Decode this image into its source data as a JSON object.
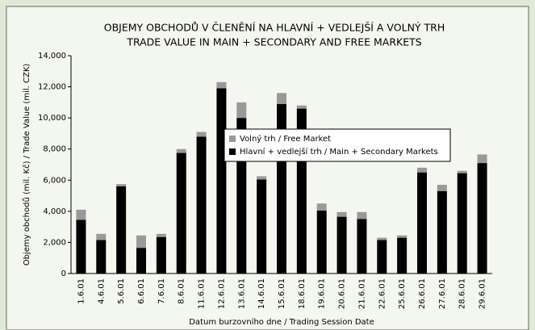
{
  "chart_data": {
    "type": "stacked_bar",
    "title": "OBJEMY OBCHODŮ V ČLENĚNÍ NA HLAVNÍ + VEDLEJŠÍ A VOLNÝ TRH",
    "subtitle": "TRADE VALUE IN MAIN + SECONDARY AND FREE MARKETS",
    "x_label": "Datum burzovního dne /  Trading Session Date",
    "y_label": "Objemy obchodů (mil. Kč) / Trade Value (mil. CZK)",
    "categories": [
      "1.6.01",
      "4.6.01",
      "5.6.01",
      "6.6.01",
      "7.6.01",
      "8.6.01",
      "11.6.01",
      "12.6.01",
      "13.6.01",
      "14.6.01",
      "15.6.01",
      "18.6.01",
      "19.6.01",
      "20.6.01",
      "21.6.01",
      "22.6.01",
      "25.6.01",
      "26.6.01",
      "27.6.01",
      "28.6.01",
      "29.6.01"
    ],
    "series": [
      {
        "name": "Hlavní + vedlejší trh / Main + Secondary Markets",
        "color": "#000000",
        "values": [
          3450,
          2150,
          5600,
          1650,
          2350,
          7750,
          8800,
          11900,
          10000,
          6050,
          10900,
          10600,
          4050,
          3650,
          3500,
          2150,
          2300,
          6500,
          5300,
          6450,
          7100
        ]
      },
      {
        "name": "Volný trh / Free Market",
        "color": "#999999",
        "values": [
          650,
          400,
          150,
          800,
          200,
          250,
          300,
          400,
          1000,
          200,
          700,
          200,
          450,
          300,
          450,
          150,
          150,
          300,
          400,
          150,
          550
        ]
      }
    ],
    "ylim": [
      0,
      14000
    ],
    "yticks": [
      0,
      {
        "value": 2000,
        "label": "2,000"
      },
      {
        "value": 4000,
        "label": "4,000"
      },
      {
        "value": 6000,
        "label": "6,000"
      },
      {
        "value": 8000,
        "label": "8,000"
      },
      {
        "value": 10000,
        "label": "10,000"
      },
      {
        "value": 12000,
        "label": "12,000"
      },
      {
        "value": 14000,
        "label": "14,000"
      }
    ],
    "grid": false
  }
}
